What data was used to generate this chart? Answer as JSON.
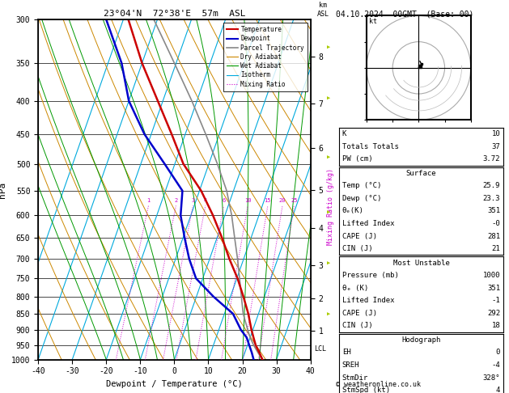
{
  "title_left": "23°04'N  72°38'E  57m  ASL",
  "title_right": "04.10.2024  00GMT  (Base: 00)",
  "xlabel": "Dewpoint / Temperature (°C)",
  "ylabel_left": "hPa",
  "x_min": -40,
  "x_max": 40,
  "pressure_ticks": [
    300,
    350,
    400,
    450,
    500,
    550,
    600,
    650,
    700,
    750,
    800,
    850,
    900,
    950,
    1000
  ],
  "temperature_profile": {
    "pressure": [
      1000,
      975,
      950,
      925,
      900,
      850,
      800,
      750,
      700,
      650,
      600,
      550,
      500,
      450,
      400,
      350,
      300
    ],
    "temp": [
      25.9,
      24.2,
      22.4,
      21.0,
      19.6,
      17.0,
      13.8,
      10.2,
      5.8,
      1.5,
      -3.5,
      -9.5,
      -17.5,
      -24.0,
      -31.5,
      -40.0,
      -48.5
    ]
  },
  "dewpoint_profile": {
    "pressure": [
      1000,
      975,
      950,
      925,
      900,
      850,
      800,
      750,
      700,
      650,
      600,
      550,
      500,
      450,
      400,
      350,
      300
    ],
    "dewp": [
      23.3,
      22.0,
      20.5,
      19.0,
      16.5,
      12.5,
      5.0,
      -2.0,
      -6.0,
      -9.5,
      -13.0,
      -15.0,
      -23.0,
      -32.0,
      -40.0,
      -46.0,
      -55.0
    ]
  },
  "parcel_trajectory": {
    "pressure": [
      1000,
      975,
      950,
      925,
      900,
      850,
      800,
      750,
      700,
      650,
      600,
      550,
      500,
      450,
      400,
      350,
      300
    ],
    "temp": [
      25.9,
      23.8,
      21.8,
      20.0,
      18.5,
      15.5,
      13.2,
      10.8,
      8.2,
      5.2,
      2.0,
      -2.0,
      -7.5,
      -14.0,
      -21.5,
      -30.5,
      -41.0
    ]
  },
  "lcl_pressure": 962,
  "km_ticks": [
    1,
    2,
    3,
    4,
    5,
    6,
    7,
    8
  ],
  "km_pressures": [
    902,
    806,
    715,
    628,
    548,
    472,
    404,
    342
  ],
  "mixing_ratio_values": [
    1,
    2,
    3,
    4,
    6,
    10,
    15,
    20,
    25
  ],
  "mixing_ratio_labels": [
    "1",
    "2",
    "3",
    "4",
    "6",
    "10",
    "15",
    "20",
    "25"
  ],
  "colors": {
    "temperature": "#cc0000",
    "dewpoint": "#0000cc",
    "parcel": "#888888",
    "dry_adiabat": "#cc8800",
    "wet_adiabat": "#009900",
    "isotherm": "#00aadd",
    "mixing_ratio": "#cc00cc",
    "background": "#ffffff",
    "grid": "#000000"
  },
  "info_panel": {
    "K": "10",
    "Totals Totals": "37",
    "PW (cm)": "3.72",
    "Surface_Temp": "25.9",
    "Surface_Dewp": "23.3",
    "Surface_thetae": "351",
    "Surface_LI": "-0",
    "Surface_CAPE": "281",
    "Surface_CIN": "21",
    "MU_Pressure": "1000",
    "MU_thetae": "351",
    "MU_LI": "-1",
    "MU_CAPE": "292",
    "MU_CIN": "18",
    "EH": "0",
    "SREH": "-4",
    "StmDir": "328°",
    "StmSpd": "4"
  },
  "skew_factor": 35
}
